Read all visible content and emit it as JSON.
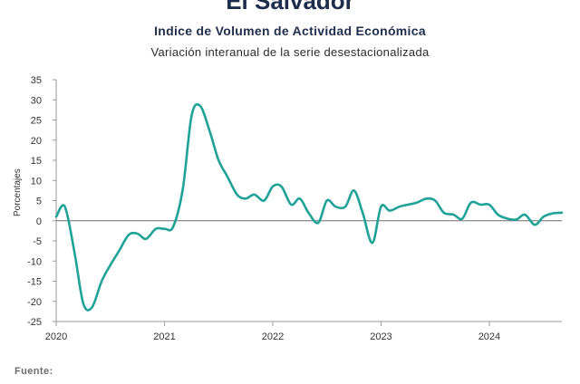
{
  "chart_data": {
    "type": "line",
    "title": "El Salvador",
    "subtitle": "Indice de Volumen de  Actividad Económica",
    "subsubtitle": "Variación interanual de la serie desestacionalizada",
    "ylabel": "Porcentajes",
    "xlabel": "",
    "ylim": [
      -25,
      35
    ],
    "yticks": [
      35,
      30,
      25,
      20,
      15,
      10,
      5,
      0,
      -5,
      -10,
      -15,
      -20,
      -25
    ],
    "xlim": [
      2020.0,
      2024.67
    ],
    "xticks": [
      {
        "label": "2020",
        "value": 2020.0
      },
      {
        "label": "2021",
        "value": 2021.0
      },
      {
        "label": "2022",
        "value": 2022.0
      },
      {
        "label": "2023",
        "value": 2023.0
      },
      {
        "label": "2024",
        "value": 2024.0
      }
    ],
    "grid": false,
    "line_color": "#1fa297",
    "series": [
      {
        "points": [
          [
            2020.0,
            1.0
          ],
          [
            2020.08,
            3.5
          ],
          [
            2020.17,
            -8.0
          ],
          [
            2020.25,
            -20.5
          ],
          [
            2020.33,
            -21.5
          ],
          [
            2020.42,
            -15.0
          ],
          [
            2020.5,
            -11.0
          ],
          [
            2020.58,
            -7.5
          ],
          [
            2020.67,
            -3.5
          ],
          [
            2020.75,
            -3.2
          ],
          [
            2020.83,
            -4.5
          ],
          [
            2020.92,
            -2.0
          ],
          [
            2021.0,
            -2.0
          ],
          [
            2021.08,
            -1.5
          ],
          [
            2021.17,
            8.0
          ],
          [
            2021.25,
            26.0
          ],
          [
            2021.33,
            28.5
          ],
          [
            2021.42,
            22.0
          ],
          [
            2021.5,
            15.0
          ],
          [
            2021.58,
            11.0
          ],
          [
            2021.67,
            6.5
          ],
          [
            2021.75,
            5.5
          ],
          [
            2021.83,
            6.5
          ],
          [
            2021.92,
            5.0
          ],
          [
            2022.0,
            8.5
          ],
          [
            2022.08,
            8.5
          ],
          [
            2022.17,
            4.0
          ],
          [
            2022.25,
            5.5
          ],
          [
            2022.33,
            2.0
          ],
          [
            2022.42,
            -0.5
          ],
          [
            2022.5,
            5.0
          ],
          [
            2022.58,
            3.5
          ],
          [
            2022.67,
            3.5
          ],
          [
            2022.75,
            7.5
          ],
          [
            2022.83,
            2.0
          ],
          [
            2022.92,
            -5.5
          ],
          [
            2023.0,
            3.5
          ],
          [
            2023.08,
            2.5
          ],
          [
            2023.17,
            3.5
          ],
          [
            2023.25,
            4.0
          ],
          [
            2023.33,
            4.5
          ],
          [
            2023.42,
            5.5
          ],
          [
            2023.5,
            5.0
          ],
          [
            2023.58,
            2.0
          ],
          [
            2023.67,
            1.5
          ],
          [
            2023.75,
            0.5
          ],
          [
            2023.83,
            4.5
          ],
          [
            2023.92,
            4.0
          ],
          [
            2024.0,
            4.0
          ],
          [
            2024.08,
            1.5
          ],
          [
            2024.17,
            0.5
          ],
          [
            2024.25,
            0.3
          ],
          [
            2024.33,
            1.5
          ],
          [
            2024.42,
            -1.0
          ],
          [
            2024.5,
            1.0
          ],
          [
            2024.58,
            1.8
          ],
          [
            2024.67,
            2.0
          ]
        ]
      }
    ],
    "source": "Fuente:"
  }
}
